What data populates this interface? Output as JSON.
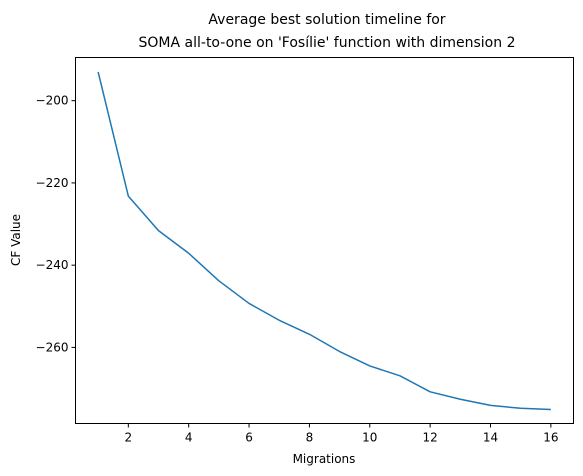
{
  "chart_data": {
    "type": "line",
    "title_line1": "Average best solution timeline for",
    "title_line2": "SOMA all-to-one on 'Fosílie' function with dimension 2",
    "xlabel": "Migrations",
    "ylabel": "CF Value",
    "xlim": [
      0.25,
      16.75
    ],
    "ylim": [
      -278.5,
      -189.5
    ],
    "xticks": [
      2,
      4,
      6,
      8,
      10,
      12,
      14,
      16
    ],
    "yticks": [
      -200,
      -220,
      -240,
      -260
    ],
    "grid": false,
    "color": "#1f77b4",
    "series": [
      {
        "x": [
          1,
          2,
          3,
          4,
          5,
          6,
          7,
          8,
          9,
          10,
          11,
          12,
          13,
          14,
          15,
          16
        ],
        "values": [
          -193,
          -223.2,
          -231.6,
          -237.1,
          -243.8,
          -249.3,
          -253.4,
          -256.8,
          -261.0,
          -264.5,
          -266.9,
          -270.8,
          -272.6,
          -274.1,
          -274.8,
          -275.1
        ]
      }
    ]
  }
}
